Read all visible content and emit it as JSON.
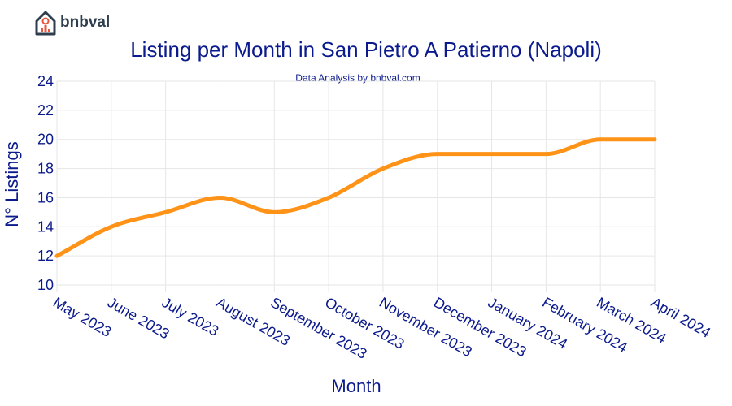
{
  "brand": {
    "name": "bnbval"
  },
  "colors": {
    "title": "#0b1a8c",
    "line": "#ff9318",
    "grid": "#e6e6e6",
    "logo": "#2f3e4e",
    "logo_accent": "#e8553d"
  },
  "chart_data": {
    "type": "line",
    "title": "Listing per Month in San Pietro A Patierno (Napoli)",
    "subtitle": "Data Analysis by bnbval.com",
    "xlabel": "Month",
    "ylabel": "N° Listings",
    "categories": [
      "May 2023",
      "June 2023",
      "July 2023",
      "August 2023",
      "September 2023",
      "October 2023",
      "November 2023",
      "December 2023",
      "January 2024",
      "February 2024",
      "March 2024",
      "April 2024"
    ],
    "values": [
      12,
      14,
      15,
      16,
      15,
      16,
      18,
      19,
      19,
      19,
      20,
      20
    ],
    "ylim": [
      9.5,
      24
    ],
    "yticks": [
      10,
      12,
      14,
      16,
      18,
      20,
      22,
      24
    ],
    "grid": true,
    "smooth": true
  }
}
